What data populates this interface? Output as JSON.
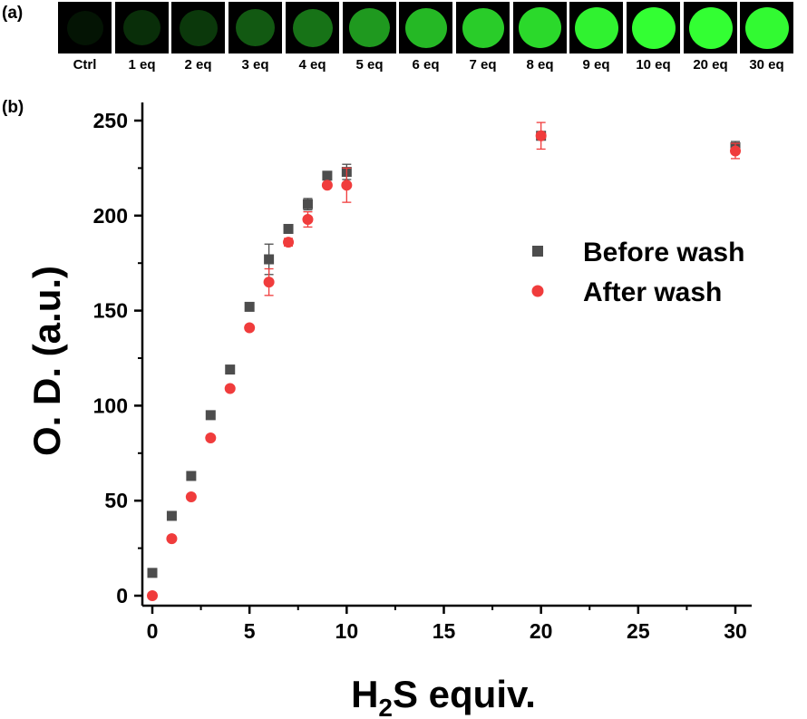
{
  "panel_a": {
    "label": "(a)",
    "thumbnails": [
      {
        "label": "Ctrl",
        "intensity": 0.02
      },
      {
        "label": "1 eq",
        "intensity": 0.18
      },
      {
        "label": "2 eq",
        "intensity": 0.22
      },
      {
        "label": "3 eq",
        "intensity": 0.35
      },
      {
        "label": "4 eq",
        "intensity": 0.45
      },
      {
        "label": "5 eq",
        "intensity": 0.6
      },
      {
        "label": "6 eq",
        "intensity": 0.72
      },
      {
        "label": "7 eq",
        "intensity": 0.8
      },
      {
        "label": "8 eq",
        "intensity": 0.85
      },
      {
        "label": "9 eq",
        "intensity": 0.95
      },
      {
        "label": "10 eq",
        "intensity": 1.0
      },
      {
        "label": "20 eq",
        "intensity": 1.0
      },
      {
        "label": "30 eq",
        "intensity": 0.98
      }
    ],
    "spot_color": "#33ff33"
  },
  "panel_b": {
    "label": "(b)"
  },
  "chart_data": {
    "type": "scatter",
    "xlabel_main": "H",
    "xlabel_sub": "2",
    "xlabel_rest": "S equiv.",
    "ylabel": "O. D. (a.u.)",
    "xlim": [
      -0.5,
      31
    ],
    "ylim": [
      -5,
      250
    ],
    "xticks": [
      0,
      5,
      10,
      15,
      20,
      25,
      30
    ],
    "yticks": [
      0,
      50,
      100,
      150,
      200,
      250
    ],
    "legend_position": "right",
    "series": [
      {
        "name": "Before wash",
        "marker": "square",
        "color": "#4d4d4d",
        "points": [
          {
            "x": 0,
            "y": 12,
            "err": 1
          },
          {
            "x": 1,
            "y": 42,
            "err": 1
          },
          {
            "x": 2,
            "y": 63,
            "err": 2
          },
          {
            "x": 3,
            "y": 95,
            "err": 1
          },
          {
            "x": 4,
            "y": 119,
            "err": 1
          },
          {
            "x": 5,
            "y": 152,
            "err": 1
          },
          {
            "x": 6,
            "y": 177,
            "err": 8
          },
          {
            "x": 7,
            "y": 193,
            "err": 2
          },
          {
            "x": 8,
            "y": 206,
            "err": 3
          },
          {
            "x": 9,
            "y": 221,
            "err": 1
          },
          {
            "x": 10,
            "y": 223,
            "err": 4
          },
          {
            "x": 20,
            "y": 242,
            "err": 2
          },
          {
            "x": 30,
            "y": 236,
            "err": 3
          }
        ]
      },
      {
        "name": "After wash",
        "marker": "circle",
        "color": "#f03c3c",
        "points": [
          {
            "x": 0,
            "y": 0,
            "err": 0
          },
          {
            "x": 1,
            "y": 30,
            "err": 1
          },
          {
            "x": 2,
            "y": 52,
            "err": 1
          },
          {
            "x": 3,
            "y": 83,
            "err": 1
          },
          {
            "x": 4,
            "y": 109,
            "err": 1
          },
          {
            "x": 5,
            "y": 141,
            "err": 1
          },
          {
            "x": 6,
            "y": 165,
            "err": 7
          },
          {
            "x": 7,
            "y": 186,
            "err": 2
          },
          {
            "x": 8,
            "y": 198,
            "err": 4
          },
          {
            "x": 9,
            "y": 216,
            "err": 1
          },
          {
            "x": 10,
            "y": 216,
            "err": 9
          },
          {
            "x": 20,
            "y": 242,
            "err": 7
          },
          {
            "x": 30,
            "y": 234,
            "err": 4
          }
        ]
      }
    ]
  }
}
